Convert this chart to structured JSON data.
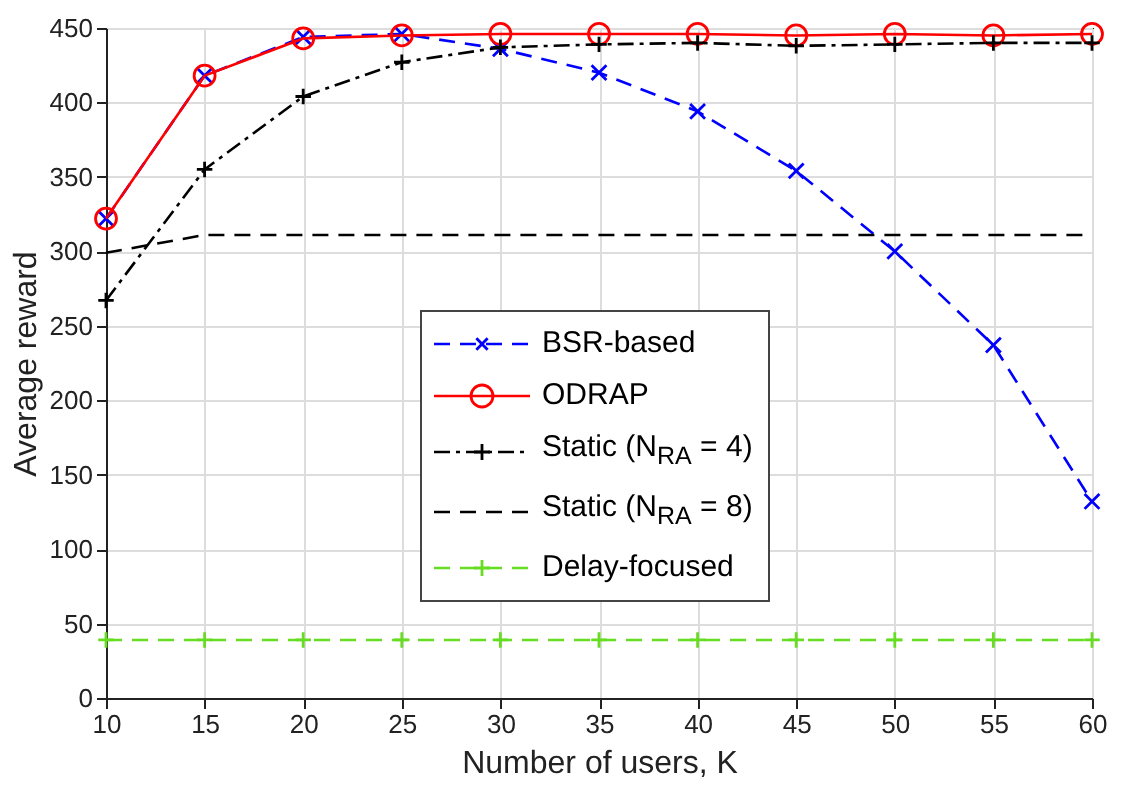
{
  "chart_data": {
    "type": "line",
    "xlabel": "Number of users, K",
    "ylabel": "Average reward",
    "x": [
      10,
      15,
      20,
      25,
      30,
      35,
      40,
      45,
      50,
      55,
      60
    ],
    "series": [
      {
        "name": "BSR-based",
        "color": "#0000ff",
        "marker": "x",
        "line_style": "dashed",
        "values": [
          322,
          418,
          444,
          446,
          436,
          420,
          394,
          354,
          300,
          237,
          132
        ]
      },
      {
        "name": "ODRAP",
        "color": "#ff0000",
        "marker": "circle",
        "line_style": "solid",
        "values": [
          322,
          418,
          443,
          445,
          446,
          446,
          446,
          445,
          446,
          445,
          446
        ]
      },
      {
        "name": "Static (N$_{RA}$ = 4)",
        "color": "#000000",
        "marker": "cross",
        "line_style": "dashdot",
        "values": [
          267,
          355,
          404,
          427,
          437,
          439,
          440,
          438,
          439,
          440,
          440
        ]
      },
      {
        "name": "Static (N$_{RA}$ = 8)",
        "color": "#000000",
        "marker": "none",
        "line_style": "dashed",
        "values": [
          299,
          311,
          311,
          311,
          311,
          311,
          311,
          311,
          311,
          311,
          311
        ]
      },
      {
        "name": "Delay-focused",
        "color": "#66dd22",
        "marker": "cross",
        "line_style": "dashed",
        "values": [
          39,
          39,
          39,
          39,
          39,
          39,
          39,
          39,
          39,
          39,
          39
        ]
      }
    ],
    "xlim": [
      10,
      60
    ],
    "xticks": [
      10,
      15,
      20,
      25,
      30,
      35,
      40,
      45,
      50,
      55,
      60
    ],
    "ylim": [
      0,
      450
    ],
    "yticks": [
      0,
      50,
      100,
      150,
      200,
      250,
      300,
      350,
      400,
      450
    ],
    "grid": true,
    "legend": "bottom"
  }
}
